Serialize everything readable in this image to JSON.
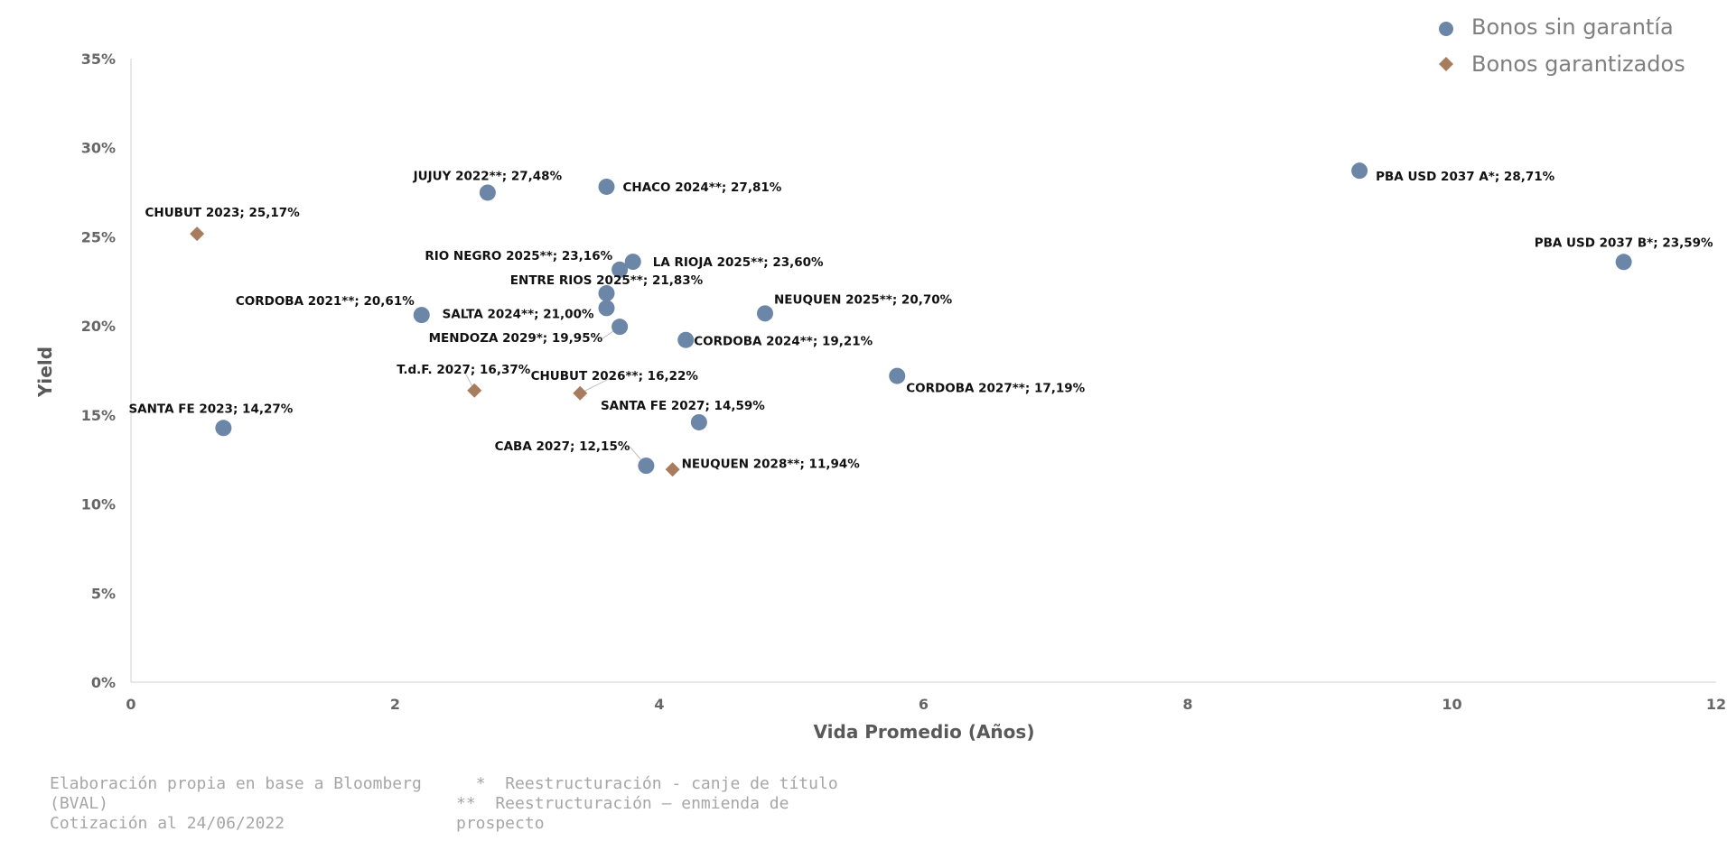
{
  "chart_data": {
    "type": "scatter",
    "xlabel": "Vida Promedio (Años)",
    "ylabel": "Yield",
    "xlim": [
      0,
      12
    ],
    "ylim": [
      0,
      35
    ],
    "x_ticks": [
      "0",
      "2",
      "4",
      "6",
      "8",
      "10",
      "12"
    ],
    "y_ticks": [
      "0%",
      "5%",
      "10%",
      "15%",
      "20%",
      "25%",
      "30%",
      "35%"
    ],
    "grid": false,
    "legend_position": "top-right",
    "series": [
      {
        "name": "Bonos sin garantía",
        "marker": "circle",
        "color": "#6b86a6",
        "points": [
          {
            "label": "JUJUY 2022**; 27,48%",
            "x": 2.7,
            "y": 27.48
          },
          {
            "label": "CHACO 2024**; 27,81%",
            "x": 3.6,
            "y": 27.81
          },
          {
            "label": "PBA USD 2037 A*; 28,71%",
            "x": 9.3,
            "y": 28.71
          },
          {
            "label": "PBA USD 2037 B*; 23,59%",
            "x": 11.3,
            "y": 23.59
          },
          {
            "label": "RIO NEGRO 2025**; 23,16%",
            "x": 3.7,
            "y": 23.16
          },
          {
            "label": "LA RIOJA 2025**; 23,60%",
            "x": 3.8,
            "y": 23.6
          },
          {
            "label": "ENTRE RIOS 2025**; 21,83%",
            "x": 3.6,
            "y": 21.83
          },
          {
            "label": "CORDOBA 2021**; 20,61%",
            "x": 2.2,
            "y": 20.61
          },
          {
            "label": "SALTA 2024**; 21,00%",
            "x": 3.6,
            "y": 21.0
          },
          {
            "label": "MENDOZA 2029*; 19,95%",
            "x": 3.7,
            "y": 19.95
          },
          {
            "label": "NEUQUEN 2025**; 20,70%",
            "x": 4.8,
            "y": 20.7
          },
          {
            "label": "CORDOBA 2024**; 19,21%",
            "x": 4.2,
            "y": 19.21
          },
          {
            "label": "CORDOBA 2027**; 17,19%",
            "x": 5.8,
            "y": 17.19
          },
          {
            "label": "SANTA FE 2023; 14,27%",
            "x": 0.7,
            "y": 14.27
          },
          {
            "label": "SANTA FE 2027; 14,59%",
            "x": 4.3,
            "y": 14.59
          },
          {
            "label": "CABA 2027; 12,15%",
            "x": 3.9,
            "y": 12.15
          }
        ]
      },
      {
        "name": "Bonos garantizados",
        "marker": "diamond",
        "color": "#a87c5f",
        "points": [
          {
            "label": "CHUBUT 2023; 25,17%",
            "x": 0.5,
            "y": 25.17
          },
          {
            "label": "T.d.F. 2027; 16,37%",
            "x": 2.6,
            "y": 16.37
          },
          {
            "label": "CHUBUT 2026**; 16,22%",
            "x": 3.4,
            "y": 16.22
          },
          {
            "label": "NEUQUEN 2028**; 11,94%",
            "x": 4.1,
            "y": 11.94
          }
        ]
      }
    ]
  },
  "notes": {
    "source_line1": "Elaboración propia en base a Bloomberg",
    "source_line2": "(BVAL)",
    "source_line3": "Cotización al 24/06/2022",
    "footnote1": "  *  Reestructuración - canje de título",
    "footnote2_line1": "**  Reestructuración – enmienda de",
    "footnote2_line2": "prospecto"
  }
}
